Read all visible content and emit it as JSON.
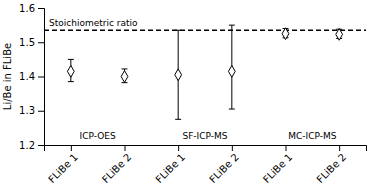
{
  "chart_data": {
    "type": "scatter",
    "y_label": "Li/Be in FLiBe",
    "categories": [
      "FLiBe 1",
      "FLiBe 2",
      "FLiBe 1",
      "FLiBe 2",
      "FLiBe 1",
      "FLiBe 2"
    ],
    "values": [
      1.415,
      1.4,
      1.405,
      1.415,
      1.525,
      1.523
    ],
    "error_up": [
      0.035,
      0.022,
      0.13,
      0.135,
      0.015,
      0.015
    ],
    "error_down": [
      0.03,
      0.018,
      0.13,
      0.11,
      0.012,
      0.012
    ],
    "marker": "diamond",
    "color": "black",
    "reference_line": {
      "value": 1.535,
      "label": "Stoichiometric ratio",
      "line_style": "dashed"
    },
    "annotations": [
      "ICP-OES",
      "SF-ICP-MS",
      "MC-ICP-MS"
    ],
    "ylim": [
      1.2,
      1.6
    ],
    "yticks": [
      1.2,
      1.3,
      1.4,
      1.5,
      1.6
    ],
    "grid": false
  }
}
